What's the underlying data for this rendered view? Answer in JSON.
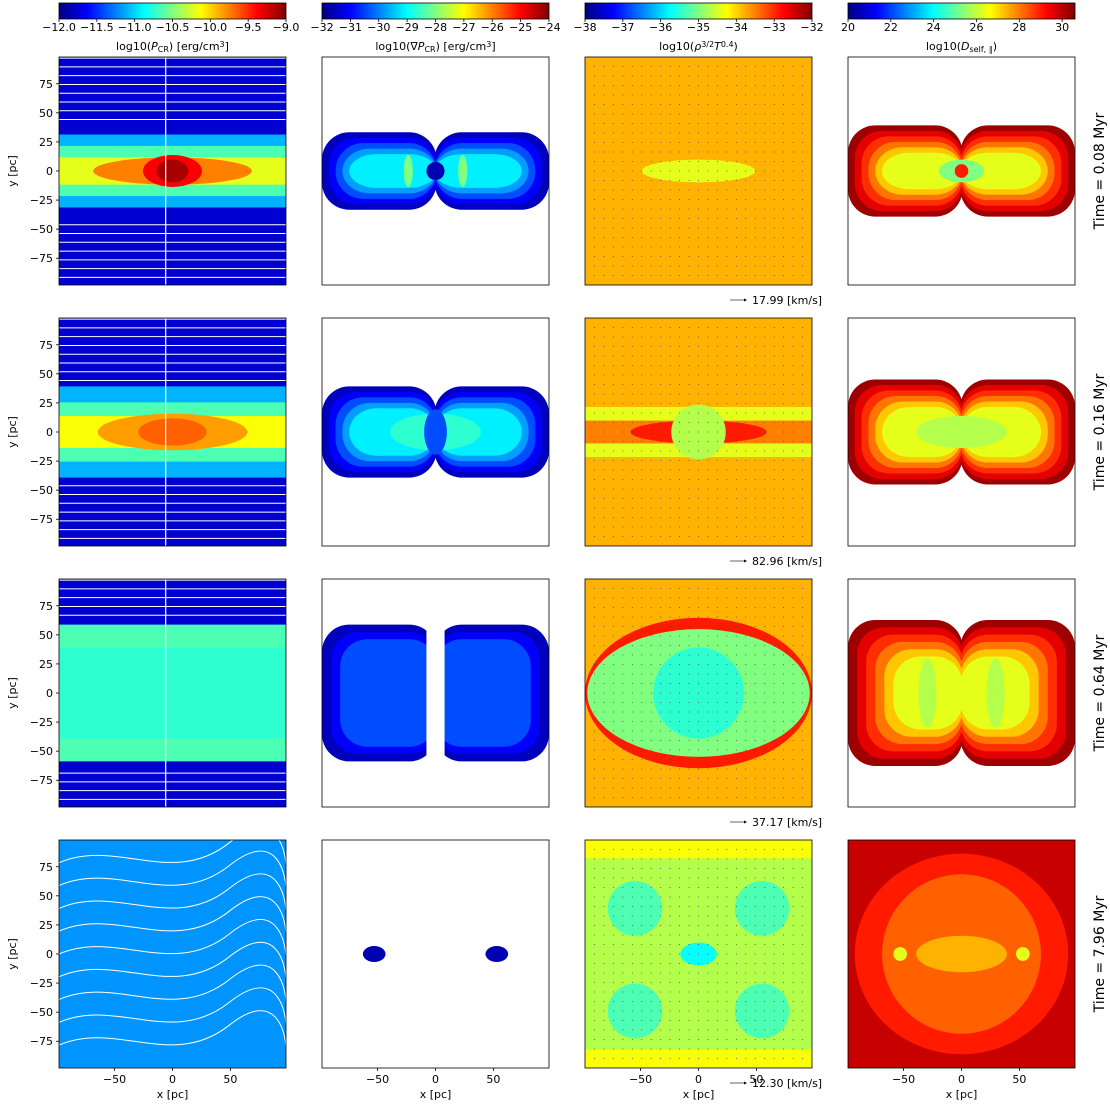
{
  "chart_data": {
    "type": "contour",
    "cmap": "jet",
    "colorbars": [
      {
        "label": [
          {
            "text": "log10("
          },
          {
            "text": "P",
            "style": "italic"
          },
          {
            "text": "CR",
            "style": "sub"
          },
          {
            "text": ") [erg/cm"
          },
          {
            "text": "3",
            "style": "sup"
          },
          {
            "text": "]"
          }
        ],
        "xlim": [
          -12,
          -9
        ],
        "xticks": [
          {
            "value": -12,
            "label": "−12.0"
          },
          {
            "value": -11.5,
            "label": "−11.5"
          },
          {
            "value": -11,
            "label": "−11.0"
          },
          {
            "value": -10.5,
            "label": "−10.5"
          },
          {
            "value": -10,
            "label": "−10.0"
          },
          {
            "value": -9.5,
            "label": "−9.5"
          },
          {
            "value": -9,
            "label": "−9.0"
          }
        ]
      },
      {
        "label": [
          {
            "text": "log10(∇"
          },
          {
            "text": "P",
            "style": "italic"
          },
          {
            "text": "CR",
            "style": "sub"
          },
          {
            "text": ") [erg/cm"
          },
          {
            "text": "3",
            "style": "sup"
          },
          {
            "text": "]"
          }
        ],
        "xlim": [
          -32,
          -24
        ],
        "xticks": [
          {
            "value": -32,
            "label": "−32"
          },
          {
            "value": -31,
            "label": "−31"
          },
          {
            "value": -30,
            "label": "−30"
          },
          {
            "value": -29,
            "label": "−29"
          },
          {
            "value": -28,
            "label": "−28"
          },
          {
            "value": -27,
            "label": "−27"
          },
          {
            "value": -26,
            "label": "−26"
          },
          {
            "value": -25,
            "label": "−25"
          },
          {
            "value": -24,
            "label": "−24"
          }
        ]
      },
      {
        "label": [
          {
            "text": "log10("
          },
          {
            "text": "ρ",
            "style": "italic"
          },
          {
            "text": "3/2",
            "style": "sup"
          },
          {
            "text": "T",
            "style": "italic"
          },
          {
            "text": "0.4",
            "style": "sup"
          },
          {
            "text": ")"
          }
        ],
        "xlim": [
          -38,
          -32
        ],
        "xticks": [
          {
            "value": -38,
            "label": "−38"
          },
          {
            "value": -37,
            "label": "−37"
          },
          {
            "value": -36,
            "label": "−36"
          },
          {
            "value": -35,
            "label": "−35"
          },
          {
            "value": -34,
            "label": "−34"
          },
          {
            "value": -33,
            "label": "−33"
          },
          {
            "value": -32,
            "label": "−32"
          }
        ]
      },
      {
        "label": [
          {
            "text": "log10("
          },
          {
            "text": "D",
            "style": "italic"
          },
          {
            "text": "self, ∥",
            "style": "sub"
          },
          {
            "text": ")"
          }
        ],
        "xlim": [
          20,
          30.6
        ],
        "xticks": [
          20,
          22,
          24,
          26,
          28,
          30
        ]
      }
    ],
    "xlim": [
      -98,
      98
    ],
    "ylim": [
      -98,
      98
    ],
    "xticks": [
      {
        "value": -50,
        "label": "−50"
      },
      0,
      50
    ],
    "yticks": [
      {
        "value": -75,
        "label": "−75"
      },
      {
        "value": -50,
        "label": "−50"
      },
      {
        "value": -25,
        "label": "−25"
      },
      0,
      25,
      50,
      75
    ],
    "xlabel": "x [pc]",
    "ylabel": "y [pc]",
    "rows": [
      {
        "label": "Time = 0.08 Myr",
        "quiver_key": "17.99 [km/s]"
      },
      {
        "label": "Time = 0.16 Myr",
        "quiver_key": "82.96 [km/s]"
      },
      {
        "label": "Time = 0.64 Myr",
        "quiver_key": "37.17 [km/s]"
      },
      {
        "label": "Time = 7.96 Myr",
        "quiver_key": "12.30 [km/s]"
      }
    ]
  }
}
